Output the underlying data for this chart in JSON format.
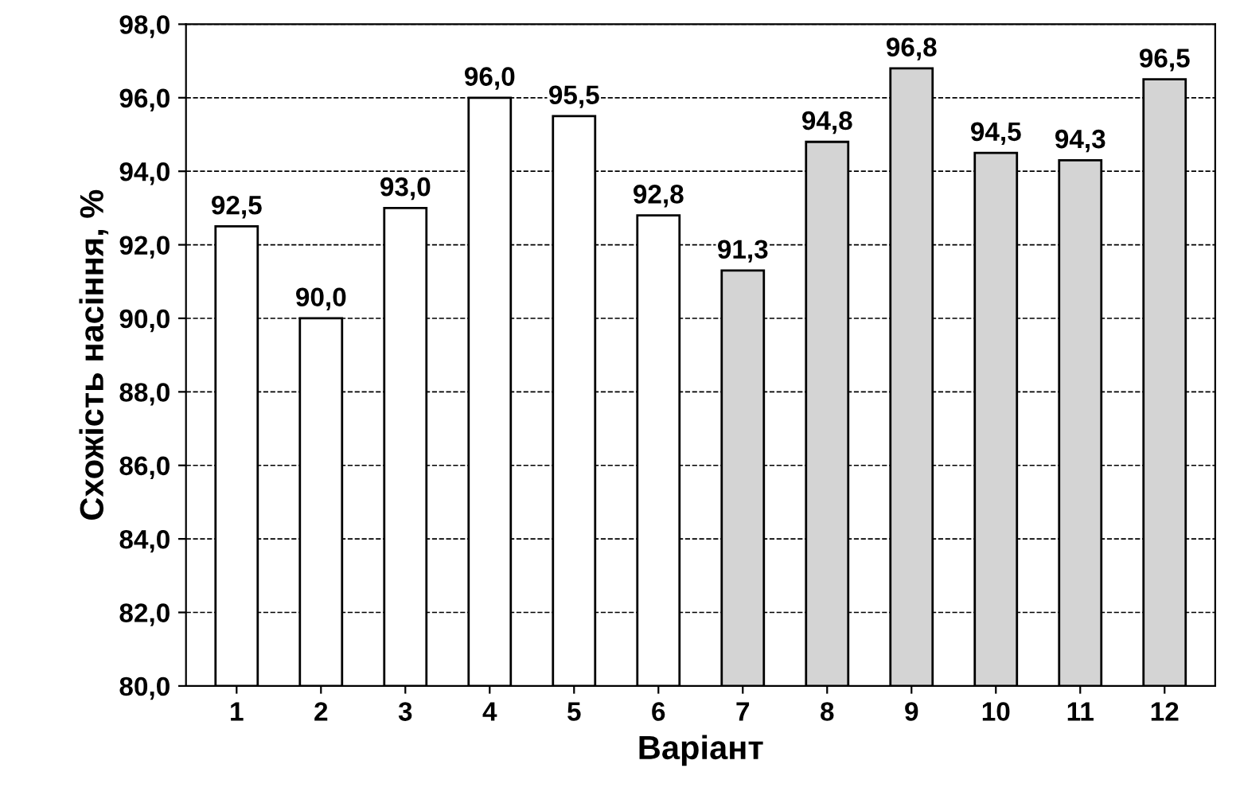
{
  "chart_data": {
    "type": "bar",
    "xlabel": "Варіант",
    "ylabel": "Схожість насіння, %",
    "categories": [
      "1",
      "2",
      "3",
      "4",
      "5",
      "6",
      "7",
      "8",
      "9",
      "10",
      "11",
      "12"
    ],
    "values": [
      92.5,
      90.0,
      93.0,
      96.0,
      95.5,
      92.8,
      91.3,
      94.8,
      96.8,
      94.5,
      94.3,
      96.5
    ],
    "value_labels": [
      "92,5",
      "90,0",
      "93,0",
      "96,0",
      "95,5",
      "92,8",
      "91,3",
      "94,8",
      "96,8",
      "94,5",
      "94,3",
      "96,5"
    ],
    "colors": [
      "#ffffff",
      "#ffffff",
      "#ffffff",
      "#ffffff",
      "#ffffff",
      "#ffffff",
      "#d4d4d4",
      "#d4d4d4",
      "#d4d4d4",
      "#d4d4d4",
      "#d4d4d4",
      "#d4d4d4"
    ],
    "ylim": [
      80,
      98
    ],
    "yticks": [
      {
        "value": 80,
        "label": "80,0"
      },
      {
        "value": 82,
        "label": "82,0"
      },
      {
        "value": 84,
        "label": "84,0"
      },
      {
        "value": 86,
        "label": "86,0"
      },
      {
        "value": 88,
        "label": "88,0"
      },
      {
        "value": 90,
        "label": "90,0"
      },
      {
        "value": 92,
        "label": "92,0"
      },
      {
        "value": 94,
        "label": "94,0"
      },
      {
        "value": 96,
        "label": "96,0"
      },
      {
        "value": 98,
        "label": "98,0"
      }
    ],
    "grid": "y"
  }
}
